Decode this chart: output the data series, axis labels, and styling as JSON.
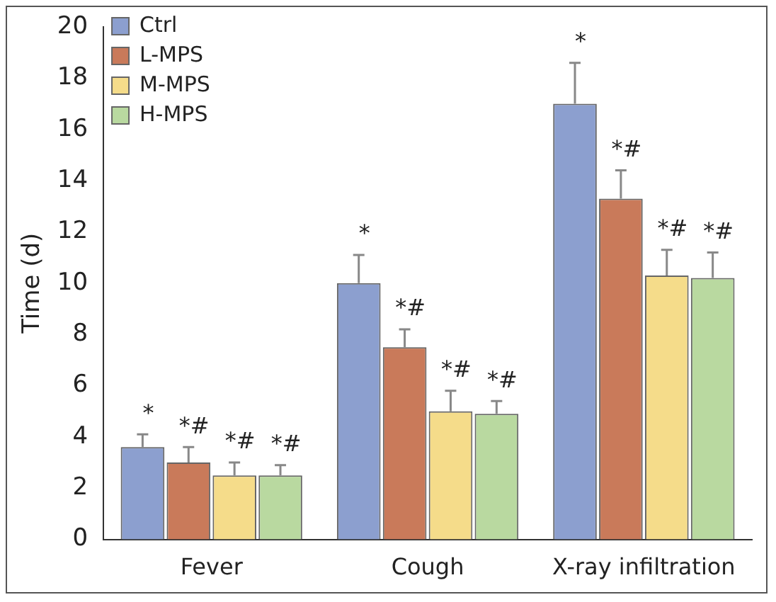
{
  "chart_data": {
    "type": "bar",
    "ylabel": "Time (d)",
    "categories": [
      "Fever",
      "Cough",
      "X-ray infiltration"
    ],
    "series": [
      {
        "name": "Ctrl",
        "color": "#8c9fcf",
        "values": [
          3.6,
          10,
          17
        ],
        "errors": [
          [
            3.6,
            4.1
          ],
          [
            10,
            11.1
          ],
          [
            17,
            18.6
          ]
        ]
      },
      {
        "name": "L-MPS",
        "color": "#c97a5a",
        "values": [
          3.0,
          7.5,
          13.3
        ],
        "errors": [
          [
            3.0,
            3.6
          ],
          [
            7.5,
            8.2
          ],
          [
            13.3,
            14.4
          ]
        ]
      },
      {
        "name": "M-MPS",
        "color": "#f5dc8a",
        "values": [
          2.5,
          5.0,
          10.3
        ],
        "errors": [
          [
            2.5,
            3.0
          ],
          [
            5.0,
            5.8
          ],
          [
            10.3,
            11.3
          ]
        ]
      },
      {
        "name": "H-MPS",
        "color": "#b9d9a0",
        "values": [
          2.5,
          4.9,
          10.2
        ],
        "errors": [
          [
            2.5,
            2.9
          ],
          [
            4.9,
            5.4
          ],
          [
            10.2,
            11.2
          ]
        ]
      }
    ],
    "ylim": [
      0,
      20
    ],
    "yticks": [
      0,
      2,
      4,
      6,
      8,
      10,
      12,
      14,
      16,
      18,
      20
    ],
    "grid": false,
    "legend": "top left",
    "annotations": [
      "*",
      "*#",
      "*#",
      "*#",
      "*",
      "*#",
      "*#",
      "*#",
      "*",
      "*#",
      "*#",
      "*#"
    ]
  }
}
